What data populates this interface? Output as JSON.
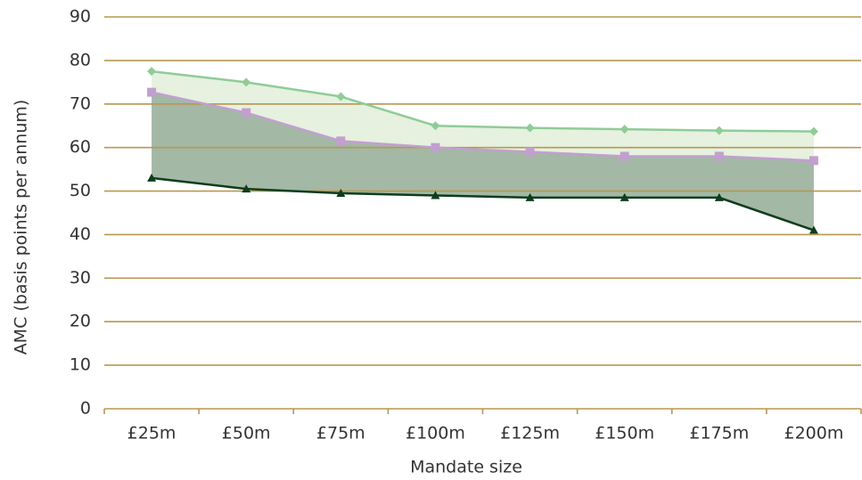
{
  "chart_data": {
    "type": "area",
    "x_label": "Mandate size",
    "y_label": "AMC (basis points per annum)",
    "categories": [
      "£25m",
      "£50m",
      "£75m",
      "£100m",
      "£125m",
      "£150m",
      "£175m",
      "£200m"
    ],
    "series": [
      {
        "color": "#8fcc97",
        "fill": "#e6f1df",
        "marker": "diamond",
        "values": [
          77.5,
          75,
          71.7,
          65,
          64.5,
          64.2,
          63.9,
          63.7
        ]
      },
      {
        "color": "#c39fd0",
        "fill": "#a3b8a5",
        "marker": "square",
        "values": [
          72.7,
          68,
          61.5,
          60,
          59,
          58,
          58,
          57
        ]
      },
      {
        "color": "#0d3d1c",
        "marker": "triangle",
        "values": [
          53,
          50.5,
          49.5,
          49,
          48.5,
          48.5,
          48.5,
          41
        ]
      }
    ],
    "ylim": [
      0,
      90
    ],
    "yticks": [
      0,
      10,
      20,
      30,
      40,
      50,
      60,
      70,
      80,
      90
    ],
    "grid": true,
    "grid_color": "#b8974f"
  }
}
